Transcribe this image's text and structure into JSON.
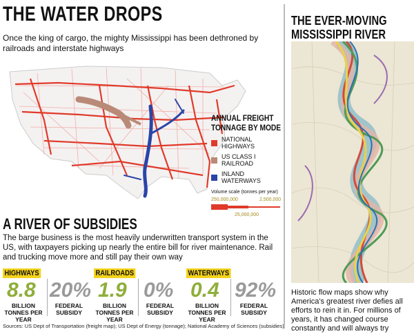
{
  "left": {
    "title": "THE WATER DROPS",
    "subtitle": "Once the king of cargo, the mighty Mississippi has been dethroned by railroads and interstate highways",
    "legend": {
      "title": "ANNUAL FREIGHT TONNAGE BY MODE",
      "items": [
        {
          "label": "NATIONAL HIGHWAYS",
          "color": "#e03a2a"
        },
        {
          "label": "US CLASS I RAILROAD",
          "color": "#b98a78"
        },
        {
          "label": "INLAND WATERWAYS",
          "color": "#2a45a8"
        }
      ],
      "volume_title": "Volume scale (tonnes per year)",
      "scale_250m": "250,000,000",
      "scale_25m": "25,000,000",
      "scale_2_5m": "2,500,000"
    },
    "section_title": "A RIVER OF SUBSIDIES",
    "section_body": "The barge business is the most heavily underwritten transport system in the US, with taxpayers picking up nearly the entire bill for river maintenance. Rail and trucking move more and still pay their own way",
    "modes": [
      {
        "label": "HIGHWAYS",
        "tonnes": "8.8",
        "tonnes_label": "BILLION TONNES PER YEAR",
        "subsidy": "20%",
        "subsidy_label": "FEDERAL SUBSIDY"
      },
      {
        "label": "RAILROADS",
        "tonnes": "1.9",
        "tonnes_label": "BILLION TONNES PER YEAR",
        "subsidy": "0%",
        "subsidy_label": "FEDERAL SUBSIDY"
      },
      {
        "label": "WATERWAYS",
        "tonnes": "0.4",
        "tonnes_label": "BILLION TONNES PER YEAR",
        "subsidy": "92%",
        "subsidy_label": "FEDERAL SUBSIDY"
      }
    ],
    "sources": "Sources: US Dept of Transportation (freight map); US Dept of Energy (tonnage); National Academy of Sciences (subsidies)"
  },
  "right": {
    "title": "THE EVER-MOVING MISSISSIPPI RIVER",
    "caption": "Historic flow maps show why America's greatest river defies all efforts to rein it in. For millions of years, it has changed course constantly and will always try"
  },
  "colors": {
    "highway": "#e03a2a",
    "rail": "#b98a78",
    "water": "#2a45a8",
    "accent": "#f3d21b"
  }
}
